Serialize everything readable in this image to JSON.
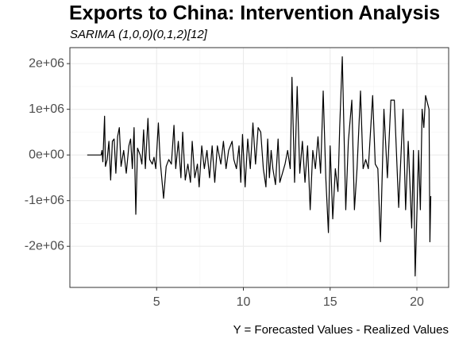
{
  "chart_data": {
    "type": "line",
    "title": "Exports to China: Intervention Analysis",
    "subtitle": "SARIMA (1,0,0)(0,1,2)[12]",
    "caption": "Y = Forecasted Values - Realized Values",
    "x": [
      1.0,
      1.4,
      1.8,
      1.85,
      1.9,
      2.0,
      2.05,
      2.15,
      2.25,
      2.35,
      2.45,
      2.55,
      2.65,
      2.75,
      2.85,
      2.95,
      3.1,
      3.25,
      3.4,
      3.5,
      3.6,
      3.7,
      3.8,
      3.9,
      4.05,
      4.15,
      4.25,
      4.35,
      4.5,
      4.6,
      4.75,
      4.85,
      4.95,
      5.1,
      5.2,
      5.4,
      5.55,
      5.7,
      5.85,
      6.0,
      6.1,
      6.25,
      6.4,
      6.5,
      6.65,
      6.8,
      6.95,
      7.05,
      7.2,
      7.35,
      7.45,
      7.6,
      7.75,
      7.9,
      8.05,
      8.2,
      8.35,
      8.5,
      8.7,
      8.85,
      9.0,
      9.15,
      9.35,
      9.45,
      9.6,
      9.75,
      9.85,
      9.95,
      10.1,
      10.25,
      10.4,
      10.55,
      10.7,
      10.85,
      11.0,
      11.15,
      11.3,
      11.4,
      11.5,
      11.6,
      11.7,
      11.85,
      12.0,
      12.1,
      12.25,
      12.4,
      12.55,
      12.7,
      12.8,
      12.95,
      13.1,
      13.25,
      13.4,
      13.55,
      13.7,
      13.85,
      14.0,
      14.15,
      14.3,
      14.45,
      14.6,
      14.75,
      14.9,
      15.0,
      15.15,
      15.3,
      15.45,
      15.55,
      15.7,
      15.9,
      16.05,
      16.25,
      16.4,
      16.55,
      16.75,
      16.9,
      17.05,
      17.2,
      17.45,
      17.6,
      17.75,
      17.9,
      18.1,
      18.3,
      18.5,
      18.7,
      18.95,
      19.2,
      19.35,
      19.5,
      19.7,
      19.8,
      19.9,
      20.1,
      20.2,
      20.3,
      20.4,
      20.5,
      20.7,
      20.75,
      20.8
    ],
    "values": [
      0,
      0,
      0,
      100000,
      -150000,
      850000,
      -250000,
      -100000,
      300000,
      -550000,
      300000,
      350000,
      -400000,
      400000,
      600000,
      -250000,
      100000,
      -400000,
      200000,
      350000,
      -300000,
      600000,
      -1300000,
      150000,
      0,
      -200000,
      550000,
      -300000,
      800000,
      -100000,
      -200000,
      -50000,
      -300000,
      700000,
      -100000,
      -950000,
      -250000,
      -100000,
      -200000,
      650000,
      -300000,
      300000,
      -500000,
      500000,
      -550000,
      -200000,
      -600000,
      300000,
      -500000,
      -200000,
      -700000,
      200000,
      -300000,
      100000,
      -500000,
      200000,
      -600000,
      200000,
      -200000,
      300000,
      -300000,
      100000,
      300000,
      -100000,
      -300000,
      200000,
      -600000,
      450000,
      -700000,
      350000,
      -300000,
      700000,
      -200000,
      600000,
      500000,
      -300000,
      -700000,
      350000,
      -500000,
      100000,
      -300000,
      -650000,
      350000,
      -600000,
      -400000,
      -200000,
      100000,
      -300000,
      1700000,
      -600000,
      1500000,
      -400000,
      300000,
      -600000,
      200000,
      -1200000,
      100000,
      -300000,
      400000,
      -400000,
      1400000,
      -500000,
      -1700000,
      200000,
      -1400000,
      -300000,
      -800000,
      600000,
      2150000,
      -1200000,
      300000,
      1200000,
      -1200000,
      -300000,
      1400000,
      -300000,
      -100000,
      -300000,
      1300000,
      -200000,
      -300000,
      -1900000,
      1000000,
      -500000,
      1200000,
      1200000,
      -1150000,
      1000000,
      -1200000,
      300000,
      -1600000,
      100000,
      -2650000,
      100000,
      -1200000,
      1000000,
      600000,
      1300000,
      1000000,
      -1900000,
      -900000
    ],
    "color": "#000000",
    "xlim": [
      0.0,
      21.83
    ],
    "ylim": [
      -2900000,
      2350000
    ],
    "xticks": [
      5,
      10,
      15,
      20
    ],
    "yticks": [
      {
        "value": 2000000,
        "label": "2e+06"
      },
      {
        "value": 1000000,
        "label": "1e+06"
      },
      {
        "value": 0,
        "label": "0e+00"
      },
      {
        "value": -1000000,
        "label": "-1e+06"
      },
      {
        "value": -2000000,
        "label": "-2e+06"
      }
    ],
    "grid": true
  }
}
